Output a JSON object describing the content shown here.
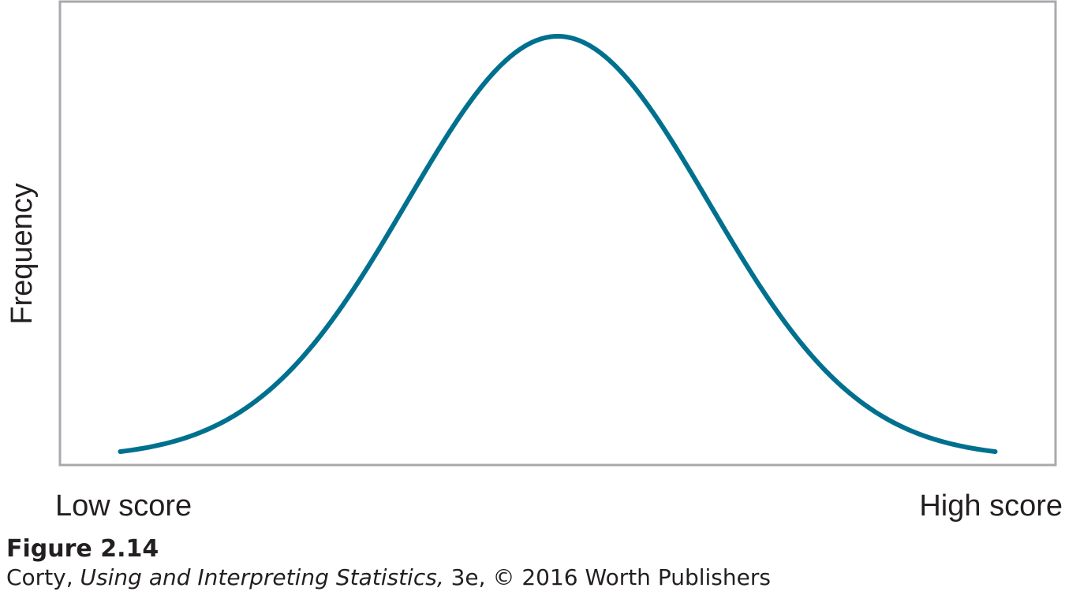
{
  "chart_data": {
    "type": "line",
    "title": "",
    "ylabel": "Frequency",
    "xlabel": "",
    "x_tick_labels": [
      "Low score",
      "High score"
    ],
    "xlim": [
      -3.3,
      3.3
    ],
    "ylim": [
      0,
      1.0
    ],
    "grid": false,
    "series": [
      {
        "color": "#00708f",
        "distribution": "normal",
        "mean": 0,
        "sd": 1,
        "x": [
          -2.9,
          -2.6,
          -2.3,
          -2.0,
          -1.7,
          -1.4,
          -1.1,
          -0.8,
          -0.5,
          -0.2,
          0,
          0.2,
          0.5,
          0.8,
          1.1,
          1.4,
          1.7,
          2.0,
          2.3,
          2.6,
          2.9
        ],
        "y": [
          0.015,
          0.034,
          0.071,
          0.135,
          0.236,
          0.375,
          0.546,
          0.726,
          0.882,
          0.98,
          1.0,
          0.98,
          0.882,
          0.726,
          0.546,
          0.375,
          0.236,
          0.135,
          0.071,
          0.034,
          0.015
        ]
      }
    ],
    "colors": {
      "frame": "#a7a9ac",
      "curve": "#00708f",
      "text": "#231f20"
    }
  },
  "caption": {
    "figure_number": "Figure 2.14",
    "credit_prefix": "Corty, ",
    "credit_book": "Using and Interpreting Statistics,",
    "credit_suffix": " 3e, © 2016 Worth Publishers"
  }
}
